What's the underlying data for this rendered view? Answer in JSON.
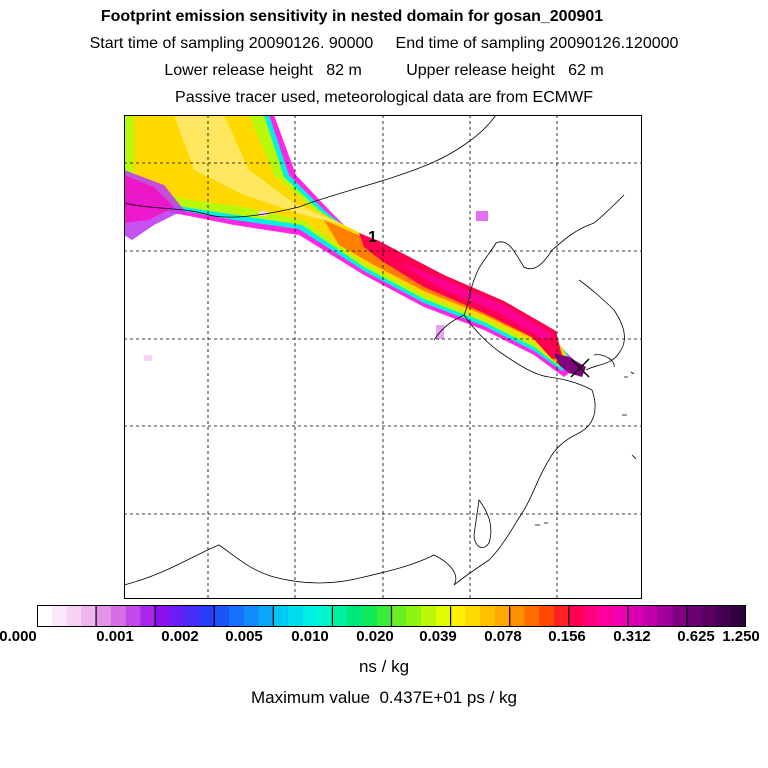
{
  "header": {
    "title": "Footprint emission sensitivity in nested domain for gosan_200901",
    "line2": "Start time of sampling 20090126. 90000     End time of sampling 20090126.120000",
    "line3": "Lower release height   82 m          Upper release height   62 m",
    "line4": "Passive tracer used, meteorological data are from ECMWF"
  },
  "map": {
    "marker_label": "1",
    "receptor_marker": "x-marker"
  },
  "colorbar": {
    "tick_labels": [
      "0.000",
      "0.001",
      "0.002",
      "0.005",
      "0.010",
      "0.020",
      "0.039",
      "0.078",
      "0.156",
      "0.312",
      "0.625",
      "1.250"
    ],
    "segments": [
      [
        "#ffffff",
        "#fbe8fb",
        "#f6d2f6",
        "#efb6ef"
      ],
      [
        "#e494e4",
        "#d56fe6",
        "#c24aea",
        "#a826ee"
      ],
      [
        "#8c10f0",
        "#6c1cf4",
        "#4a2cf8",
        "#2a3cfa"
      ],
      [
        "#1a55fa",
        "#1570fa",
        "#108cfa",
        "#0aa8fa"
      ],
      [
        "#00c8f4",
        "#00dcec",
        "#00f0e4",
        "#00f8cc"
      ],
      [
        "#00f0a0",
        "#00e87c",
        "#10e858",
        "#38ec38"
      ],
      [
        "#68f020",
        "#90f410",
        "#b8f808",
        "#e0fc00"
      ],
      [
        "#fff000",
        "#ffd800",
        "#ffc000",
        "#ffa800"
      ],
      [
        "#ff9000",
        "#ff6c00",
        "#ff4800",
        "#ff2020"
      ],
      [
        "#ff0050",
        "#ff0080",
        "#ff00a0",
        "#f000b0"
      ],
      [
        "#d800b0",
        "#c000a8",
        "#a00098",
        "#800080"
      ],
      [
        "#6a0070",
        "#580060",
        "#440050",
        "#300040"
      ]
    ],
    "units": "ns / kg"
  },
  "footer": {
    "max_value": "Maximum value  0.437E+01 ps / kg"
  }
}
